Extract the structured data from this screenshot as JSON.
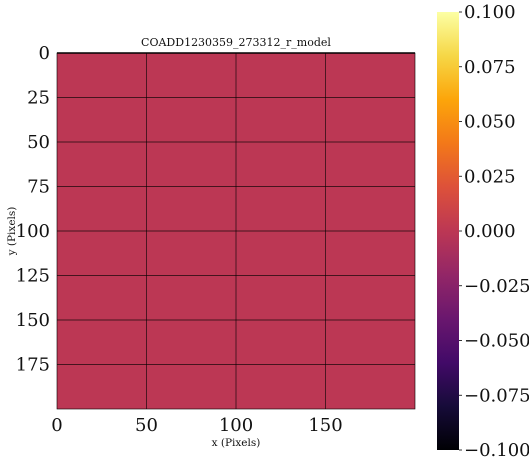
{
  "chart_data": {
    "type": "heatmap",
    "title": "COADD1230359_273312_r_model",
    "xlabel": "x (Pixels)",
    "ylabel": "y (Pixels)",
    "xlim": [
      0,
      200
    ],
    "ylim": [
      200,
      0
    ],
    "x_ticks": [
      0,
      50,
      100,
      150
    ],
    "x_tick_labels": [
      "0",
      "50",
      "100",
      "150"
    ],
    "y_ticks": [
      0,
      25,
      50,
      75,
      100,
      125,
      150,
      175
    ],
    "y_tick_labels": [
      "0",
      "25",
      "50",
      "75",
      "100",
      "125",
      "150",
      "175"
    ],
    "grid": true,
    "image_value": 0.0,
    "image_color": "#bc3754",
    "colormap": "inferno",
    "colorbar": {
      "vmin": -0.1,
      "vmax": 0.1,
      "ticks": [
        0.1,
        0.075,
        0.05,
        0.025,
        0.0,
        -0.025,
        -0.05,
        -0.075,
        -0.1
      ],
      "tick_labels": [
        "0.100",
        "0.075",
        "0.050",
        "0.025",
        "0.000",
        "−0.025",
        "−0.050",
        "−0.075",
        "−0.100"
      ]
    }
  }
}
